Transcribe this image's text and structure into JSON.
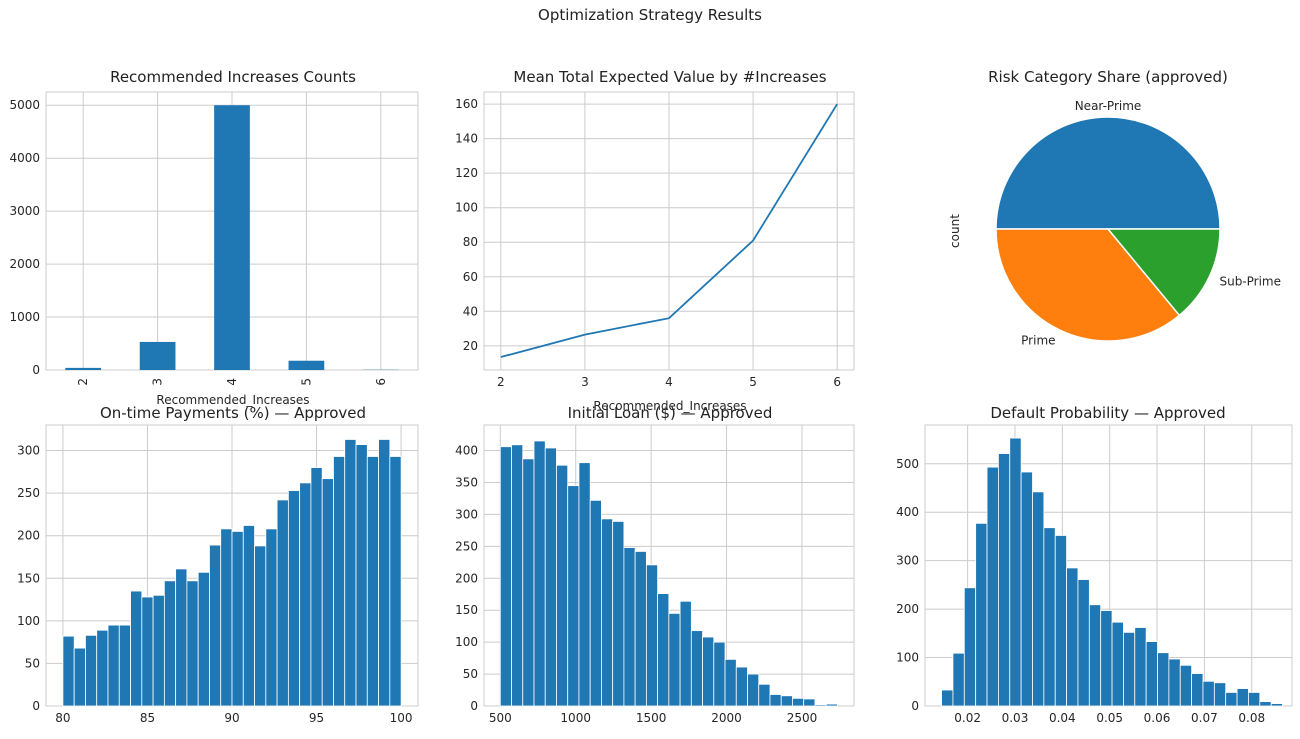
{
  "figure": {
    "title": "Optimization Strategy Results"
  },
  "colors": {
    "blue": "#1f77b4",
    "orange": "#ff7f0e",
    "green": "#2ca02c",
    "grid": "#cccccc",
    "text": "#262626"
  },
  "chart_data": [
    {
      "type": "bar",
      "title": "Recommended Increases Counts",
      "xlabel": "Recommended_Increases",
      "ylabel": "",
      "categories": [
        "2",
        "3",
        "4",
        "5",
        "6"
      ],
      "values": [
        40,
        530,
        5000,
        175,
        5
      ],
      "ylim": [
        0,
        5250
      ],
      "yticks": [
        0,
        1000,
        2000,
        3000,
        4000,
        5000
      ],
      "grid": true
    },
    {
      "type": "line",
      "title": "Mean Total Expected Value by #Increases",
      "xlabel": "Recommended_Increases",
      "ylabel": "",
      "x": [
        2,
        3,
        4,
        5,
        6
      ],
      "y": [
        13.5,
        26.5,
        36,
        81,
        160
      ],
      "xlim": [
        1.8,
        6.2
      ],
      "ylim": [
        6,
        167
      ],
      "xticks": [
        2,
        3,
        4,
        5,
        6
      ],
      "yticks": [
        20,
        40,
        60,
        80,
        100,
        120,
        140,
        160
      ],
      "grid": true
    },
    {
      "type": "pie",
      "title": "Risk Category Share (approved)",
      "ylabel": "count",
      "labels": [
        "Near-Prime",
        "Prime",
        "Sub-Prime"
      ],
      "values": [
        50,
        36,
        14
      ],
      "colors": [
        "#1f77b4",
        "#ff7f0e",
        "#2ca02c"
      ]
    },
    {
      "type": "bar",
      "title": "On-time Payments (%) — Approved",
      "xlabel": "",
      "ylabel": "",
      "bin_start": 80,
      "bin_width": 0.6667,
      "values": [
        82,
        68,
        83,
        89,
        95,
        95,
        135,
        128,
        130,
        147,
        161,
        147,
        157,
        189,
        208,
        205,
        212,
        188,
        208,
        242,
        253,
        262,
        280,
        267,
        293,
        313,
        307,
        293,
        313,
        293
      ],
      "xlim": [
        79,
        101
      ],
      "ylim": [
        0,
        330
      ],
      "xticks": [
        80,
        85,
        90,
        95,
        100
      ],
      "yticks": [
        0,
        50,
        100,
        150,
        200,
        250,
        300
      ],
      "grid": true
    },
    {
      "type": "bar",
      "title": "Initial Loan ($) — Approved",
      "xlabel": "",
      "ylabel": "",
      "bin_start": 500,
      "bin_width": 74.5,
      "values": [
        406,
        409,
        387,
        415,
        404,
        377,
        345,
        381,
        322,
        293,
        289,
        248,
        242,
        221,
        176,
        145,
        164,
        118,
        108,
        100,
        73,
        61,
        50,
        34,
        18,
        16,
        12,
        11,
        2,
        3
      ],
      "xlim": [
        392,
        2845
      ],
      "ylim": [
        0,
        440
      ],
      "xticks": [
        500,
        1000,
        1500,
        2000,
        2500
      ],
      "yticks": [
        0,
        50,
        100,
        150,
        200,
        250,
        300,
        350,
        400
      ],
      "grid": true
    },
    {
      "type": "bar",
      "title": "Default Probability — Approved",
      "xlabel": "",
      "ylabel": "",
      "bin_start": 0.0145,
      "bin_width": 0.0024,
      "values": [
        33,
        109,
        244,
        377,
        493,
        521,
        553,
        483,
        442,
        368,
        352,
        285,
        261,
        209,
        197,
        173,
        152,
        162,
        133,
        110,
        97,
        84,
        67,
        51,
        48,
        28,
        36,
        28,
        9,
        5
      ],
      "xlim": [
        0.011,
        0.0885
      ],
      "ylim": [
        0,
        580
      ],
      "xticks": [
        0.02,
        0.03,
        0.04,
        0.05,
        0.06,
        0.07,
        0.08
      ],
      "yticks": [
        0,
        100,
        200,
        300,
        400,
        500
      ],
      "grid": true
    }
  ]
}
